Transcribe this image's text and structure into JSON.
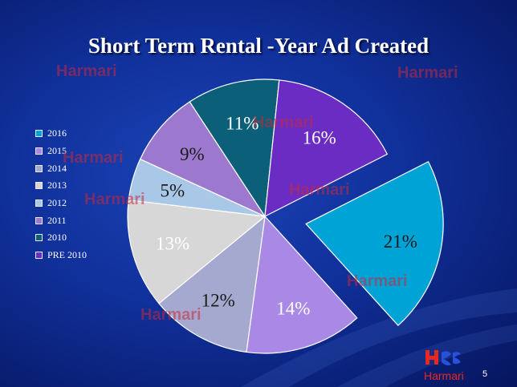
{
  "slide": {
    "title": "Short Term Rental -Year Ad Created",
    "slide_number": "5",
    "watermark_text": "Harmari",
    "logo_text": "Harmari"
  },
  "chart_data": {
    "type": "pie",
    "title": "Short Term Rental -Year Ad Created",
    "legend_position": "left",
    "slices": [
      {
        "label": "2016",
        "value": 21,
        "display": "21%",
        "color": "#00a3d6",
        "exploded": true,
        "text_color": "#1a1a1a"
      },
      {
        "label": "2015",
        "value": 14,
        "display": "14%",
        "color": "#a989e5",
        "exploded": false,
        "text_color": "#ffffff"
      },
      {
        "label": "2014",
        "value": 12,
        "display": "12%",
        "color": "#a6a9cf",
        "exploded": false,
        "text_color": "#1a1a1a"
      },
      {
        "label": "2013",
        "value": 13,
        "display": "13%",
        "color": "#d7d7d7",
        "exploded": false,
        "text_color": "#ffffff"
      },
      {
        "label": "2012",
        "value": 5,
        "display": "5%",
        "color": "#a9c8e8",
        "exploded": false,
        "text_color": "#1a1a1a"
      },
      {
        "label": "2011",
        "value": 9,
        "display": "9%",
        "color": "#9c79cf",
        "exploded": false,
        "text_color": "#1a1a1a"
      },
      {
        "label": "2010",
        "value": 11,
        "display": "11%",
        "color": "#0b5f78",
        "exploded": false,
        "text_color": "#ffffff"
      },
      {
        "label": "PRE 2010",
        "value": 16,
        "display": "16%",
        "color": "#6a2cc2",
        "exploded": false,
        "text_color": "#ffffff"
      }
    ]
  }
}
